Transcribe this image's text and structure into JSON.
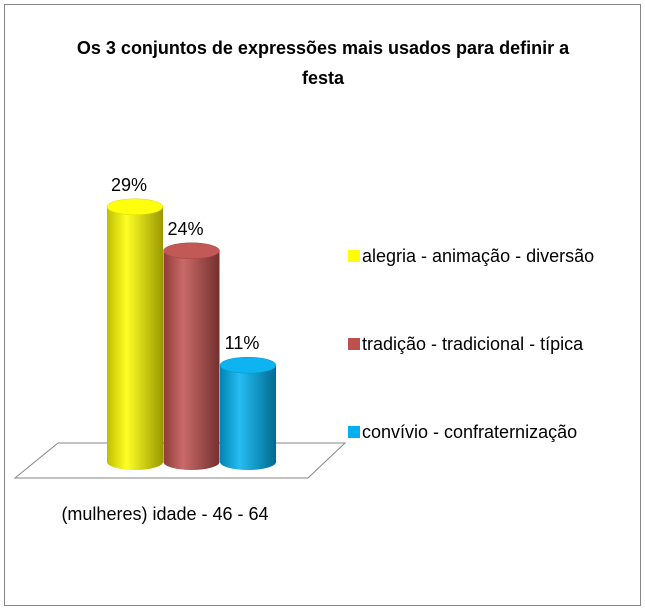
{
  "chart_data": {
    "type": "bar3d-cylinder",
    "title": "Os 3 conjuntos de expressões mais usados para definir a festa",
    "categories": [
      "(mulheres) idade - 46 - 64"
    ],
    "series": [
      {
        "name": "alegria - animação - diversão",
        "color": "#ffff00",
        "values": [
          29
        ],
        "value_labels": [
          "29%"
        ]
      },
      {
        "name": "tradição - tradicional - típica",
        "color": "#c0504d",
        "values": [
          24
        ],
        "value_labels": [
          "24%"
        ]
      },
      {
        "name": "convívio - confraternização",
        "color": "#00b0f0",
        "values": [
          11
        ],
        "value_labels": [
          "11%"
        ]
      }
    ],
    "legend": "right"
  }
}
